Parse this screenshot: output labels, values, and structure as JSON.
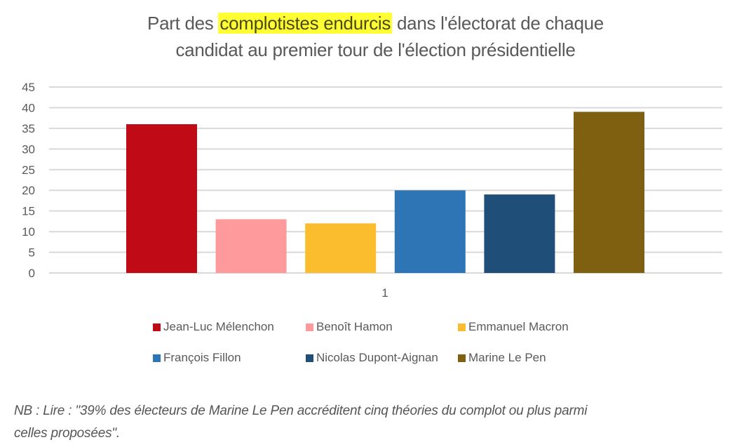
{
  "title": {
    "before": "Part des ",
    "highlight": "complotistes endurcis",
    "after": " dans l'électorat de chaque",
    "line2": "candidat au premier tour de l'élection présidentielle"
  },
  "chart_data": {
    "type": "bar",
    "title": "Part des complotistes endurcis dans l'électorat de chaque candidat au premier tour de l'élection présidentielle",
    "categories": [
      "1"
    ],
    "series": [
      {
        "name": "Jean-Luc Mélenchon",
        "color": "#c00a16",
        "values": [
          36
        ]
      },
      {
        "name": "Benoît Hamon",
        "color": "#ff9a9c",
        "values": [
          13
        ]
      },
      {
        "name": "Emmanuel Macron",
        "color": "#fbbd2e",
        "values": [
          12
        ]
      },
      {
        "name": "François Fillon",
        "color": "#2e75b6",
        "values": [
          20
        ]
      },
      {
        "name": "Nicolas Dupont-Aignan",
        "color": "#1f4e79",
        "values": [
          19
        ]
      },
      {
        "name": "Marine Le Pen",
        "color": "#7f6010",
        "values": [
          39
        ]
      }
    ],
    "xlabel": "",
    "ylabel": "",
    "ylim": [
      0,
      45
    ],
    "yticks": [
      0,
      5,
      10,
      15,
      20,
      25,
      30,
      35,
      40,
      45
    ],
    "grid": true,
    "legend_position": "bottom"
  },
  "note": {
    "line1": "NB : Lire : \"39% des électeurs de Marine Le Pen accréditent cinq théories du complot ou plus parmi",
    "line2": "celles proposées\"."
  }
}
